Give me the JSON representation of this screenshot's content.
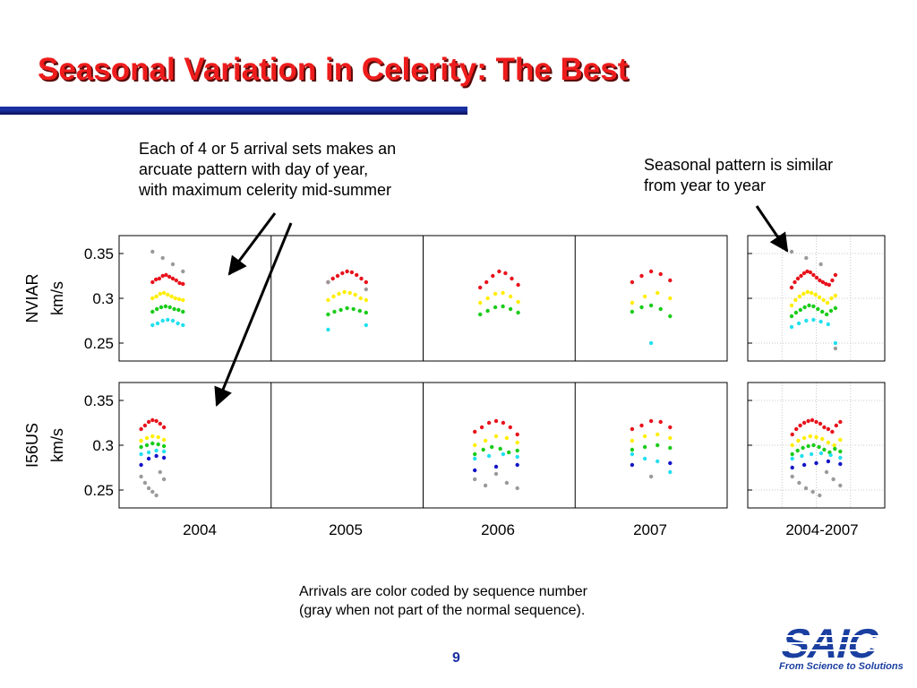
{
  "slide": {
    "title": "Seasonal Variation in Celerity: The Best",
    "note_left": "Each of 4 or 5 arrival sets makes an\narcuate pattern with day of year,\nwith maximum celerity mid-summer",
    "note_right": "Seasonal pattern is similar\nfrom year to year",
    "caption": "Arrivals are color coded by sequence number\n(gray when not part of the normal sequence).",
    "page_number": "9",
    "logo_text": "SAIC",
    "logo_tagline": "From Science to Solutions"
  },
  "colors": {
    "title": "#ee1c1c",
    "rule": "#1a2fa0",
    "seq1": "#e8121c",
    "seq2": "#ffee00",
    "seq3": "#18cc18",
    "seq4": "#22e0ee",
    "seq5": "#1414c8",
    "out_of_sequence": "#9a9a9a"
  },
  "chart_data": {
    "type": "scatter",
    "ylim": [
      0.23,
      0.37
    ],
    "yticks": [
      "0.25",
      "0.3",
      "0.35"
    ],
    "yticks_values": [
      0.25,
      0.3,
      0.35
    ],
    "grid_in_combined_panel": true,
    "rows": [
      {
        "label": "NVIAR",
        "unit": "km/s"
      },
      {
        "label": "I56US",
        "unit": "km/s"
      }
    ],
    "columns": [
      "2004",
      "2005",
      "2006",
      "2007",
      "2004-2007"
    ],
    "series_names": [
      "seq1",
      "seq2",
      "seq3",
      "seq4",
      "seq5",
      "out_of_sequence"
    ],
    "clusters": [
      {
        "row": 0,
        "col": 0,
        "xlim": [
          0,
          1
        ],
        "center": 0.32,
        "spread": 0.2,
        "points": {
          "seq1": [
            0.318,
            0.321,
            0.322,
            0.325,
            0.326,
            0.324,
            0.322,
            0.32,
            0.317,
            0.316
          ],
          "seq2": [
            0.3,
            0.302,
            0.305,
            0.306,
            0.304,
            0.302,
            0.3,
            0.299,
            0.298
          ],
          "seq3": [
            0.285,
            0.288,
            0.29,
            0.291,
            0.29,
            0.288,
            0.287,
            0.285
          ],
          "seq4": [
            0.27,
            0.272,
            0.275,
            0.276,
            0.275,
            0.272,
            0.27
          ],
          "out_of_sequence": [
            0.352,
            0.345,
            0.338,
            0.33
          ]
        }
      },
      {
        "row": 0,
        "col": 1,
        "xlim": [
          0,
          1
        ],
        "center": 0.5,
        "spread": 0.25,
        "points": {
          "seq1": [
            0.318,
            0.322,
            0.325,
            0.328,
            0.33,
            0.329,
            0.326,
            0.322,
            0.318
          ],
          "seq2": [
            0.298,
            0.302,
            0.305,
            0.307,
            0.306,
            0.304,
            0.3,
            0.298
          ],
          "seq3": [
            0.282,
            0.285,
            0.287,
            0.289,
            0.288,
            0.286,
            0.284
          ],
          "seq4": [
            0.265,
            0.27
          ],
          "out_of_sequence": [
            0.318,
            0.31
          ]
        }
      },
      {
        "row": 0,
        "col": 2,
        "xlim": [
          0,
          1
        ],
        "center": 0.5,
        "spread": 0.25,
        "points": {
          "seq1": [
            0.312,
            0.318,
            0.325,
            0.33,
            0.328,
            0.322,
            0.315
          ],
          "seq2": [
            0.295,
            0.3,
            0.305,
            0.306,
            0.302,
            0.296
          ],
          "seq3": [
            0.282,
            0.286,
            0.29,
            0.291,
            0.288,
            0.284
          ]
        }
      },
      {
        "row": 0,
        "col": 3,
        "xlim": [
          0,
          1
        ],
        "center": 0.5,
        "spread": 0.25,
        "points": {
          "seq1": [
            0.318,
            0.325,
            0.33,
            0.327,
            0.32
          ],
          "seq2": [
            0.295,
            0.302,
            0.306,
            0.3
          ],
          "seq3": [
            0.285,
            0.29,
            0.292,
            0.288,
            0.28
          ],
          "seq4": [
            0.25
          ]
        }
      },
      {
        "row": 0,
        "col": 4,
        "xlim": [
          0,
          1
        ],
        "center": 0.48,
        "spread": 0.32,
        "points": {
          "seq1": [
            0.312,
            0.318,
            0.322,
            0.325,
            0.328,
            0.33,
            0.329,
            0.326,
            0.323,
            0.32,
            0.318,
            0.316,
            0.315,
            0.32,
            0.326
          ],
          "seq2": [
            0.292,
            0.298,
            0.302,
            0.305,
            0.307,
            0.306,
            0.304,
            0.301,
            0.298,
            0.295,
            0.3,
            0.303
          ],
          "seq3": [
            0.28,
            0.284,
            0.287,
            0.29,
            0.292,
            0.291,
            0.288,
            0.285,
            0.282,
            0.286,
            0.289
          ],
          "seq4": [
            0.268,
            0.272,
            0.275,
            0.276,
            0.274,
            0.271,
            0.25
          ],
          "out_of_sequence": [
            0.352,
            0.345,
            0.338,
            0.244
          ]
        }
      },
      {
        "row": 1,
        "col": 0,
        "xlim": [
          0,
          1
        ],
        "center": 0.22,
        "spread": 0.15,
        "points": {
          "seq1": [
            0.318,
            0.322,
            0.326,
            0.328,
            0.327,
            0.324,
            0.32
          ],
          "seq2": [
            0.305,
            0.308,
            0.31,
            0.309,
            0.306
          ],
          "seq3": [
            0.298,
            0.3,
            0.302,
            0.301,
            0.299
          ],
          "seq4": [
            0.29,
            0.292,
            0.294,
            0.293
          ],
          "seq5": [
            0.278,
            0.285,
            0.288,
            0.286
          ],
          "out_of_sequence": [
            0.265,
            0.258,
            0.252,
            0.248,
            0.244,
            0.27,
            0.262
          ]
        }
      },
      {
        "row": 1,
        "col": 2,
        "xlim": [
          0,
          1
        ],
        "center": 0.48,
        "spread": 0.28,
        "points": {
          "seq1": [
            0.315,
            0.32,
            0.325,
            0.327,
            0.325,
            0.32,
            0.312
          ],
          "seq2": [
            0.3,
            0.305,
            0.31,
            0.308,
            0.303
          ],
          "seq3": [
            0.29,
            0.295,
            0.298,
            0.296,
            0.292,
            0.294
          ],
          "seq4": [
            0.285,
            0.288,
            0.29,
            0.287
          ],
          "seq5": [
            0.272,
            0.276,
            0.278
          ],
          "out_of_sequence": [
            0.262,
            0.255,
            0.268,
            0.258,
            0.252
          ]
        }
      },
      {
        "row": 1,
        "col": 3,
        "xlim": [
          0,
          1
        ],
        "center": 0.5,
        "spread": 0.25,
        "points": {
          "seq1": [
            0.318,
            0.322,
            0.327,
            0.326,
            0.32
          ],
          "seq2": [
            0.305,
            0.31,
            0.312,
            0.308
          ],
          "seq3": [
            0.295,
            0.298,
            0.3,
            0.297
          ],
          "seq4": [
            0.29,
            0.285,
            0.282,
            0.27
          ],
          "seq5": [
            0.278,
            0.28
          ],
          "out_of_sequence": [
            0.265
          ]
        }
      },
      {
        "row": 1,
        "col": 4,
        "xlim": [
          0,
          1
        ],
        "center": 0.5,
        "spread": 0.35,
        "points": {
          "seq1": [
            0.312,
            0.318,
            0.322,
            0.325,
            0.327,
            0.328,
            0.326,
            0.324,
            0.32,
            0.318,
            0.315,
            0.322,
            0.326
          ],
          "seq2": [
            0.3,
            0.305,
            0.308,
            0.31,
            0.309,
            0.307,
            0.303,
            0.3,
            0.306
          ],
          "seq3": [
            0.29,
            0.294,
            0.297,
            0.299,
            0.3,
            0.298,
            0.295,
            0.292,
            0.296,
            0.293
          ],
          "seq4": [
            0.285,
            0.288,
            0.29,
            0.291,
            0.289,
            0.286
          ],
          "seq5": [
            0.275,
            0.278,
            0.28,
            0.282,
            0.279
          ],
          "out_of_sequence": [
            0.265,
            0.258,
            0.252,
            0.248,
            0.244,
            0.27,
            0.262,
            0.255
          ]
        }
      }
    ]
  }
}
